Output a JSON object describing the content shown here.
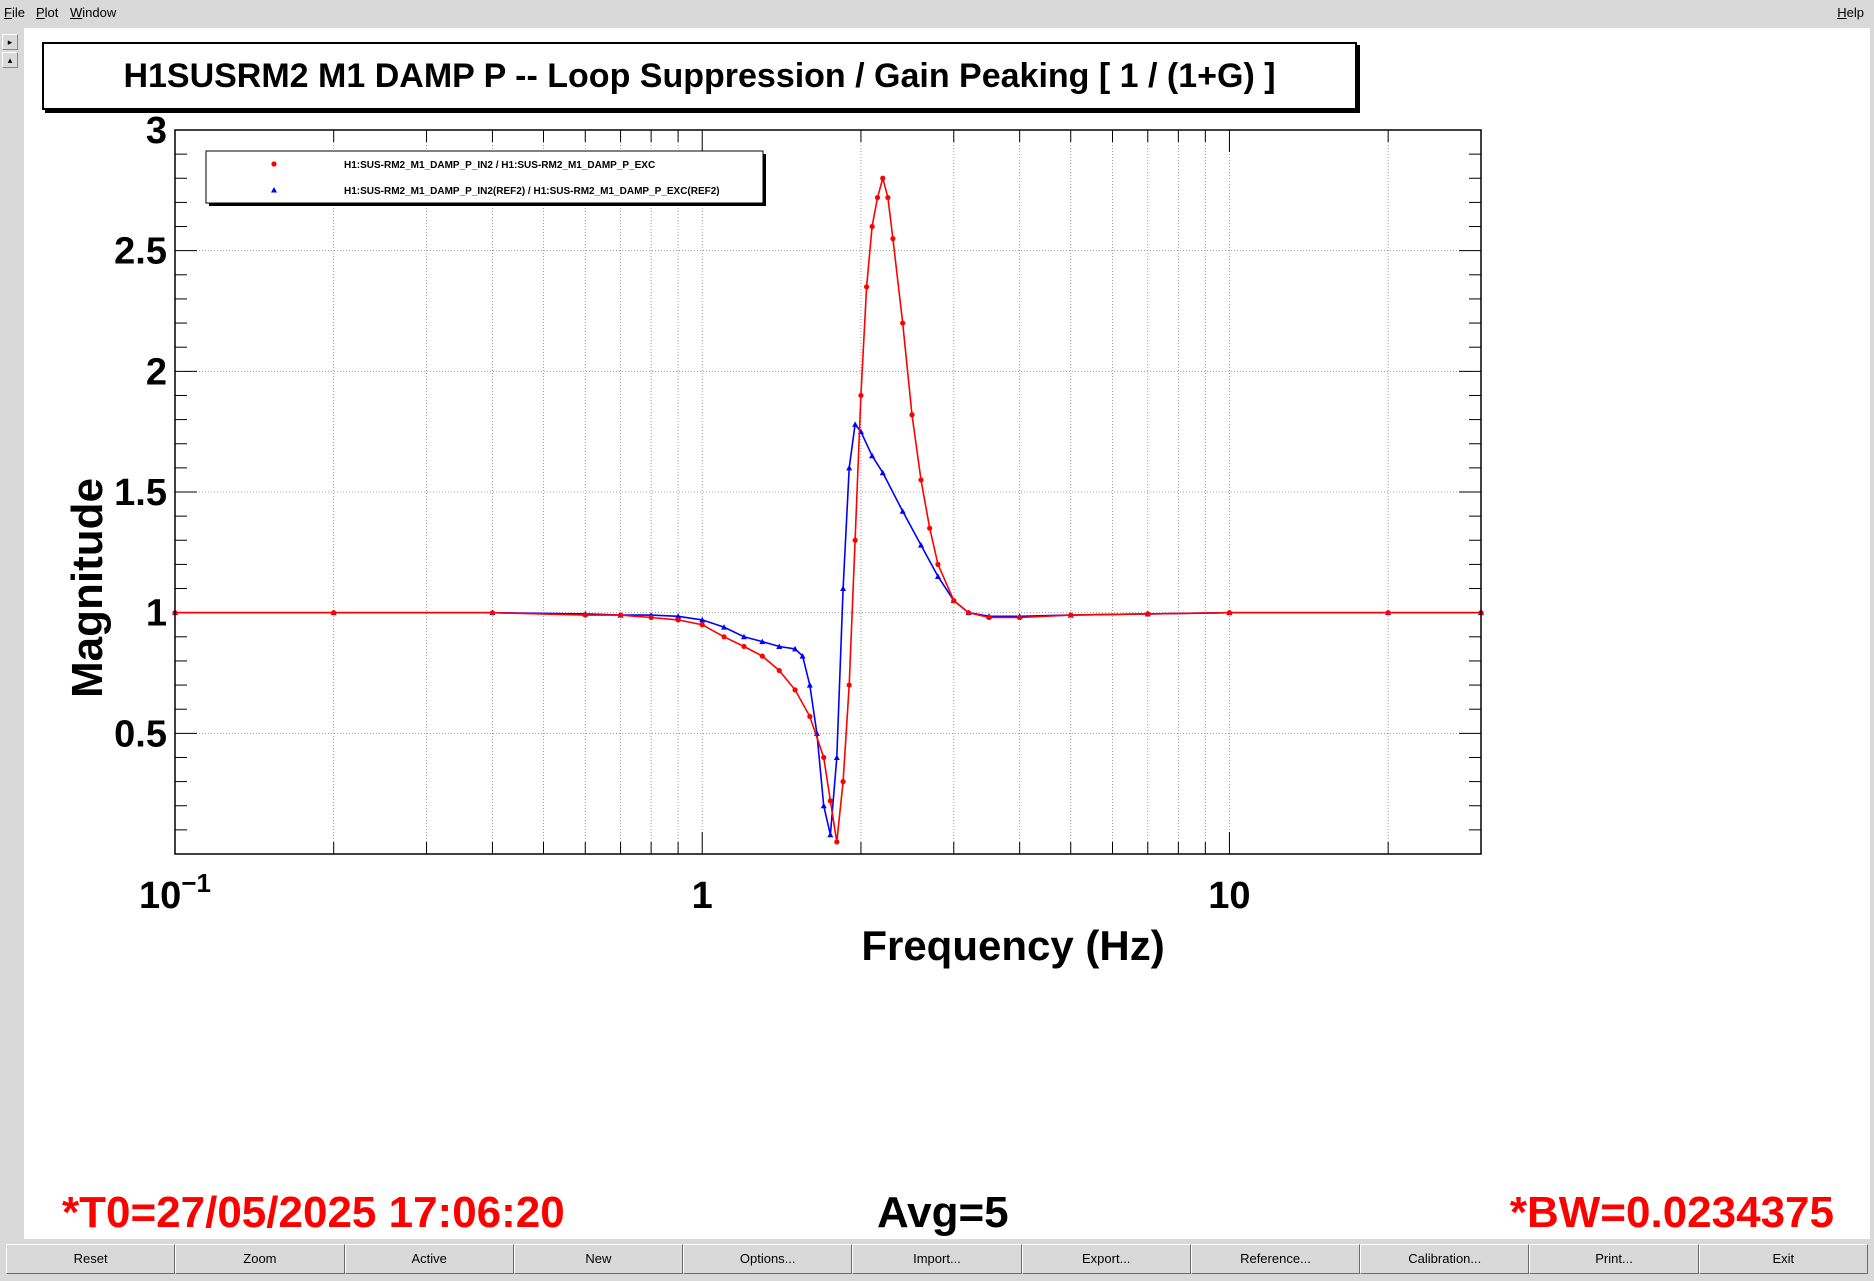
{
  "menu": {
    "file": "File",
    "plot": "Plot",
    "window": "Window",
    "help": "Help"
  },
  "title": "H1SUSRM2 M1 DAMP P -- Loop Suppression / Gain Peaking [ 1 / (1+G) ]",
  "footer": {
    "t0": "*T0=27/05/2025 17:06:20",
    "avg": "Avg=5",
    "bw": "*BW=0.0234375"
  },
  "buttons": [
    "Reset",
    "Zoom",
    "Active",
    "New",
    "Options...",
    "Import...",
    "Export...",
    "Reference...",
    "Calibration...",
    "Print...",
    "Exit"
  ],
  "colors": {
    "series_current": "#ff0000",
    "series_reference": "#0000ff"
  },
  "chart_data": {
    "type": "line",
    "xlabel": "Frequency (Hz)",
    "ylabel": "Magnitude",
    "xscale": "log",
    "xlim": [
      0.1,
      30
    ],
    "ylim": [
      0.0,
      3.0
    ],
    "grid": true,
    "legend_position": "top-left",
    "x_tick_labels": [
      {
        "value": 0.1,
        "base": "10",
        "exp": "−1"
      },
      {
        "value": 1,
        "base": "1",
        "exp": ""
      },
      {
        "value": 10,
        "base": "10",
        "exp": ""
      }
    ],
    "y_ticks": [
      0.5,
      1,
      1.5,
      2,
      2.5,
      3
    ],
    "y_tick_labels": [
      "0.5",
      "1",
      "1.5",
      "2",
      "2.5",
      "3"
    ],
    "series": [
      {
        "name": "H1:SUS-RM2_M1_DAMP_P_IN2 / H1:SUS-RM2_M1_DAMP_P_EXC",
        "marker": "circle",
        "x": [
          0.1,
          0.2,
          0.4,
          0.6,
          0.7,
          0.8,
          0.9,
          1.0,
          1.1,
          1.2,
          1.3,
          1.4,
          1.5,
          1.6,
          1.7,
          1.75,
          1.8,
          1.85,
          1.9,
          1.95,
          2.0,
          2.05,
          2.1,
          2.15,
          2.2,
          2.25,
          2.3,
          2.4,
          2.5,
          2.6,
          2.7,
          2.8,
          3.0,
          3.2,
          3.5,
          4.0,
          5.0,
          7.0,
          10.0,
          20.0,
          30.0
        ],
        "y": [
          1.0,
          1.0,
          1.0,
          0.99,
          0.99,
          0.98,
          0.97,
          0.95,
          0.9,
          0.86,
          0.82,
          0.76,
          0.68,
          0.57,
          0.4,
          0.22,
          0.05,
          0.3,
          0.7,
          1.3,
          1.9,
          2.35,
          2.6,
          2.72,
          2.8,
          2.72,
          2.55,
          2.2,
          1.82,
          1.55,
          1.35,
          1.2,
          1.05,
          1.0,
          0.98,
          0.98,
          0.99,
          0.995,
          1.0,
          1.0,
          1.0
        ]
      },
      {
        "name": "H1:SUS-RM2_M1_DAMP_P_IN2(REF2) / H1:SUS-RM2_M1_DAMP_P_EXC(REF2)",
        "marker": "triangle",
        "x": [
          0.1,
          0.2,
          0.4,
          0.6,
          0.7,
          0.8,
          0.9,
          1.0,
          1.1,
          1.2,
          1.3,
          1.4,
          1.5,
          1.55,
          1.6,
          1.65,
          1.7,
          1.75,
          1.8,
          1.85,
          1.9,
          1.95,
          2.0,
          2.1,
          2.2,
          2.4,
          2.6,
          2.8,
          3.0,
          3.2,
          3.5,
          4.0,
          5.0,
          7.0,
          10.0,
          20.0,
          30.0
        ],
        "y": [
          1.0,
          1.0,
          1.0,
          0.995,
          0.99,
          0.99,
          0.985,
          0.97,
          0.94,
          0.9,
          0.88,
          0.86,
          0.85,
          0.82,
          0.7,
          0.5,
          0.2,
          0.08,
          0.4,
          1.1,
          1.6,
          1.78,
          1.75,
          1.65,
          1.58,
          1.42,
          1.28,
          1.15,
          1.05,
          1.0,
          0.985,
          0.985,
          0.99,
          0.995,
          1.0,
          1.0,
          1.0
        ]
      }
    ]
  }
}
